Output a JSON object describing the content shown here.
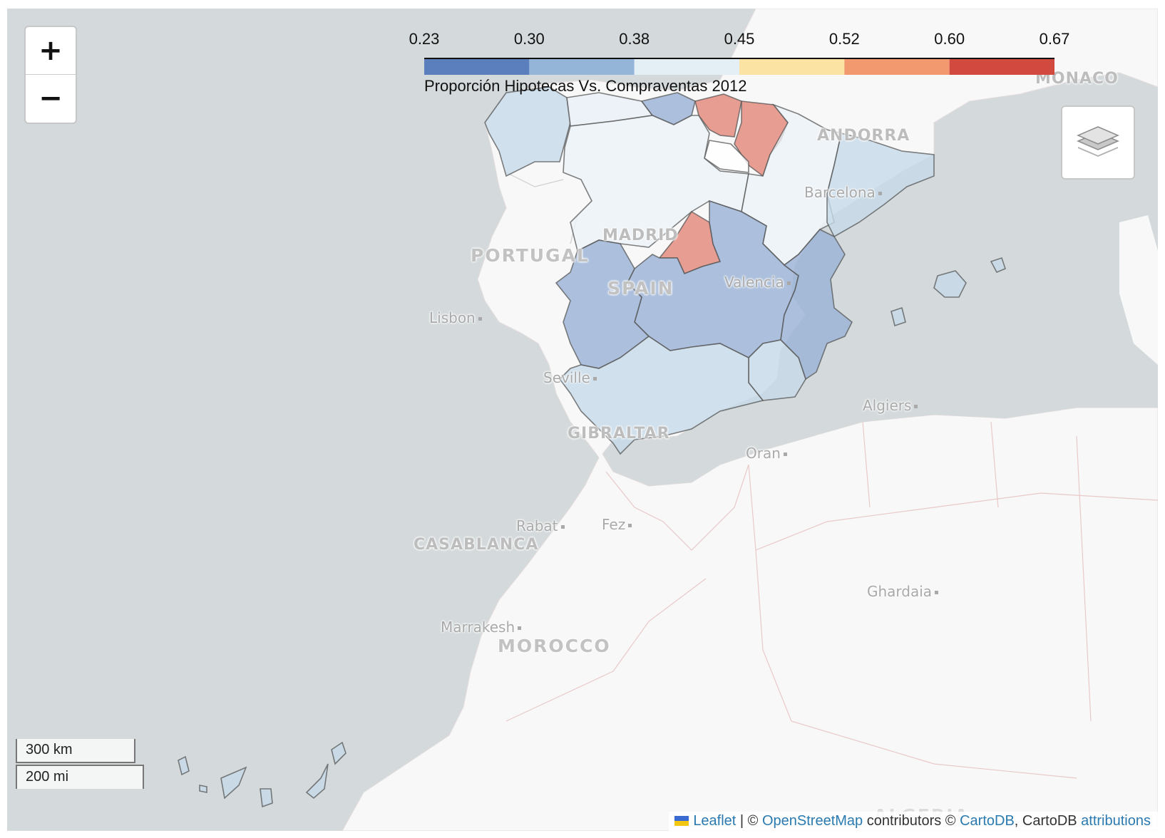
{
  "zoom": {
    "in_label": "+",
    "out_label": "−"
  },
  "layers_control": {
    "icon": "layers-icon"
  },
  "legend": {
    "ticks": [
      "0.23",
      "0.30",
      "0.38",
      "0.45",
      "0.52",
      "0.60",
      "0.67"
    ],
    "colors": [
      "#5b7ebd",
      "#94b5d8",
      "#e4eef5",
      "#fbe3a3",
      "#f2996f",
      "#d24a3f"
    ],
    "caption": "Proporción Hipotecas Vs. Compraventas 2012"
  },
  "regions": [
    {
      "name": "Galicia",
      "color": "#c6d9e8"
    },
    {
      "name": "Asturias",
      "color": "#e8f0f6"
    },
    {
      "name": "Cantabria",
      "color": "#98b2d6"
    },
    {
      "name": "País Vasco",
      "color": "#e38678"
    },
    {
      "name": "Navarra",
      "color": "#e38678"
    },
    {
      "name": "La Rioja",
      "color": "#ffffff"
    },
    {
      "name": "Castilla y León",
      "color": "#ecf3f8"
    },
    {
      "name": "Aragón",
      "color": "#ecf3f8"
    },
    {
      "name": "Cataluña",
      "color": "#c6d9e8"
    },
    {
      "name": "Madrid",
      "color": "#e38678"
    },
    {
      "name": "Castilla-La Mancha",
      "color": "#98b2d6"
    },
    {
      "name": "Extremadura",
      "color": "#98b2d6"
    },
    {
      "name": "Comunidad Valenciana",
      "color": "#98b2d6"
    },
    {
      "name": "Murcia",
      "color": "#c6d9e8"
    },
    {
      "name": "Andalucía",
      "color": "#c6d9e8"
    },
    {
      "name": "Islas Baleares",
      "color": "#c6d9e8"
    },
    {
      "name": "Canarias",
      "color": "#c6d9e8"
    }
  ],
  "map_labels": {
    "monaco": "MONACO",
    "andorra": "ANDORRA",
    "barcelona": "Barcelona",
    "madrid": "MADRID",
    "portugal": "PORTUGAL",
    "spain": "SPAIN",
    "valencia": "Valencia",
    "lisbon": "Lisbon",
    "seville": "Seville",
    "gibraltar": "GIBRALTAR",
    "algiers": "Algiers",
    "oran": "Oran",
    "rabat": "Rabat",
    "fez": "Fez",
    "casablanca": "CASABLANCA",
    "ghardaia": "Ghardaia",
    "marrakesh": "Marrakesh",
    "morocco": "MOROCCO",
    "algeria": "ALGERIA"
  },
  "scale": {
    "km": "300 km",
    "mi": "200 mi"
  },
  "attribution": {
    "leaflet": "Leaflet",
    "sep1": " | © ",
    "osm": "OpenStreetMap",
    "contrib": " contributors © ",
    "cartodb_link": "CartoDB",
    "cartodb_text": ", CartoDB ",
    "attributions": "attributions"
  }
}
